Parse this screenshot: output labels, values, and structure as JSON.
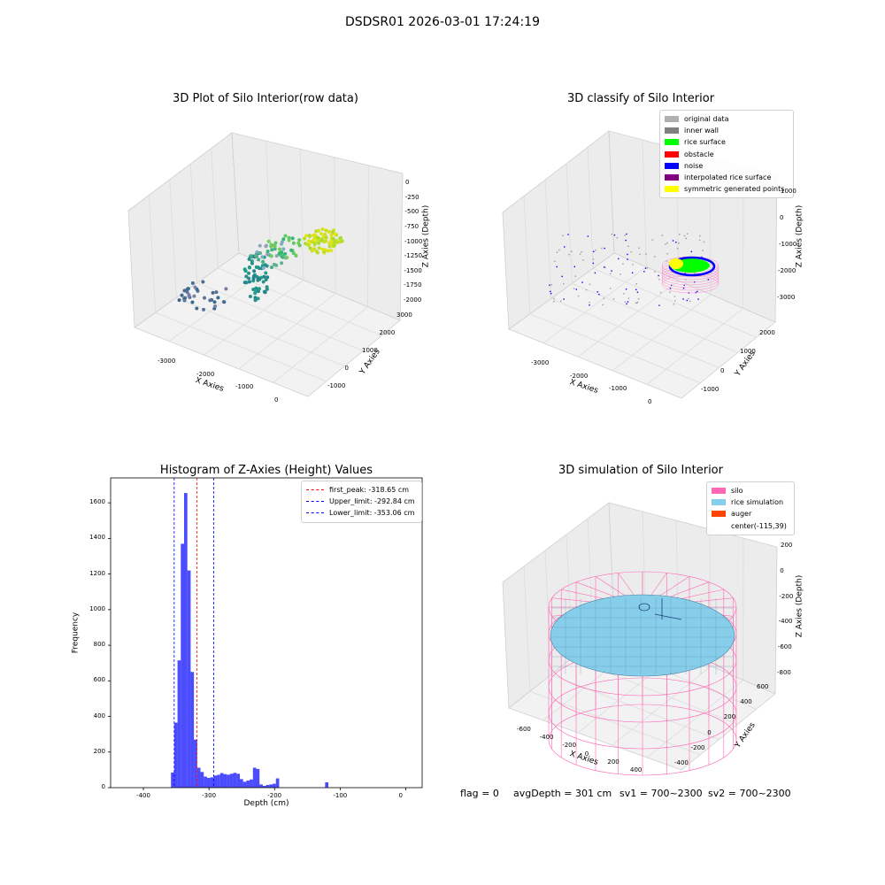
{
  "suptitle": "DSDSR01 2026-03-01 17:24:19",
  "panels": {
    "raw": {
      "title": "3D Plot of Silo Interior(row data)",
      "xlabel": "X Axies",
      "ylabel": "Y Axies",
      "zlabel": "Z Axies (Depth)",
      "xticks": [
        "-3000",
        "-2000",
        "-1000",
        "0"
      ],
      "yticks": [
        "-1000",
        "0",
        "1000",
        "2000",
        "3000"
      ],
      "zticks": [
        "0",
        "-250",
        "-500",
        "-750",
        "-1000",
        "-1250",
        "-1500",
        "-1750",
        "-2000"
      ]
    },
    "classify": {
      "title": "3D classify of Silo Interior",
      "xlabel": "X Axies",
      "ylabel": "Y Axies",
      "zlabel": "Z Axies (Depth)",
      "xticks": [
        "-3000",
        "-2000",
        "-1000",
        "0"
      ],
      "yticks": [
        "-1000",
        "0",
        "1000",
        "2000"
      ],
      "zticks": [
        "1000",
        "0",
        "-1000",
        "-2000",
        "-3000"
      ],
      "legend": [
        {
          "label": "original data",
          "color": "#b0b0b0"
        },
        {
          "label": "inner wall",
          "color": "#808080"
        },
        {
          "label": "rice surface",
          "color": "#00ff00"
        },
        {
          "label": "obstacle",
          "color": "#ff0000"
        },
        {
          "label": "noise",
          "color": "#0000ff"
        },
        {
          "label": "interpolated rice surface",
          "color": "#800080"
        },
        {
          "label": "symmetric generated points",
          "color": "#ffff00"
        }
      ]
    },
    "simulation": {
      "title": "3D simulation of Silo Interior",
      "xlabel": "X Axies",
      "ylabel": "Y Axies",
      "zlabel": "Z Axies (Depth)",
      "xticks": [
        "-600",
        "-400",
        "-200",
        "0",
        "200",
        "400"
      ],
      "yticks": [
        "-400",
        "-200",
        "0",
        "200",
        "400",
        "600"
      ],
      "zticks": [
        "200",
        "0",
        "-200",
        "-400",
        "-600",
        "-800"
      ],
      "legend": [
        {
          "label": "silo",
          "color": "#ff69b4"
        },
        {
          "label": "rice simulation",
          "color": "#87ceeb"
        },
        {
          "label": "auger",
          "color": "#ff4500"
        },
        {
          "label": "center(-115,39)",
          "color": ""
        }
      ]
    }
  },
  "bottom_text": {
    "flag": "flag = 0",
    "avg": "avgDepth = 301 cm",
    "sv1": "sv1 = 700~2300",
    "sv2": "sv2 = 700~2300"
  },
  "chart_data": {
    "type": "bar",
    "title": "Histogram of Z-Axies (Height) Values",
    "xlabel": "Depth (cm)",
    "ylabel": "Frequency",
    "xlim": [
      -450,
      25
    ],
    "ylim": [
      0,
      1740
    ],
    "xticks": [
      -400,
      -300,
      -200,
      -100,
      0
    ],
    "yticks": [
      0,
      200,
      400,
      600,
      800,
      1000,
      1200,
      1400,
      1600
    ],
    "bar_color": "#0000ff",
    "bins": [
      {
        "x0": -358,
        "x1": -353,
        "count": 85
      },
      {
        "x0": -353,
        "x1": -348,
        "count": 365
      },
      {
        "x0": -348,
        "x1": -343,
        "count": 715
      },
      {
        "x0": -343,
        "x1": -338,
        "count": 1370
      },
      {
        "x0": -338,
        "x1": -333,
        "count": 1655
      },
      {
        "x0": -333,
        "x1": -328,
        "count": 1220
      },
      {
        "x0": -328,
        "x1": -323,
        "count": 650
      },
      {
        "x0": -323,
        "x1": -318,
        "count": 270
      },
      {
        "x0": -318,
        "x1": -313,
        "count": 112
      },
      {
        "x0": -313,
        "x1": -308,
        "count": 88
      },
      {
        "x0": -308,
        "x1": -303,
        "count": 62
      },
      {
        "x0": -303,
        "x1": -298,
        "count": 55
      },
      {
        "x0": -298,
        "x1": -293,
        "count": 58
      },
      {
        "x0": -293,
        "x1": -288,
        "count": 68
      },
      {
        "x0": -288,
        "x1": -283,
        "count": 72
      },
      {
        "x0": -283,
        "x1": -278,
        "count": 82
      },
      {
        "x0": -278,
        "x1": -273,
        "count": 76
      },
      {
        "x0": -273,
        "x1": -268,
        "count": 73
      },
      {
        "x0": -268,
        "x1": -263,
        "count": 78
      },
      {
        "x0": -263,
        "x1": -258,
        "count": 83
      },
      {
        "x0": -258,
        "x1": -253,
        "count": 78
      },
      {
        "x0": -253,
        "x1": -248,
        "count": 48
      },
      {
        "x0": -248,
        "x1": -243,
        "count": 33
      },
      {
        "x0": -243,
        "x1": -238,
        "count": 40
      },
      {
        "x0": -238,
        "x1": -233,
        "count": 46
      },
      {
        "x0": -233,
        "x1": -228,
        "count": 112
      },
      {
        "x0": -228,
        "x1": -223,
        "count": 105
      },
      {
        "x0": -223,
        "x1": -218,
        "count": 18
      },
      {
        "x0": -218,
        "x1": -213,
        "count": 10
      },
      {
        "x0": -213,
        "x1": -208,
        "count": 15
      },
      {
        "x0": -208,
        "x1": -203,
        "count": 18
      },
      {
        "x0": -203,
        "x1": -198,
        "count": 22
      },
      {
        "x0": -198,
        "x1": -193,
        "count": 52
      },
      {
        "x0": -123,
        "x1": -118,
        "count": 30
      }
    ],
    "bin_note": "",
    "vlines": [
      {
        "label": "first_peak: -318.65 cm",
        "x": -318.65,
        "color": "#ff0000"
      },
      {
        "label": "Upper_limit: -292.84 cm",
        "x": -292.84,
        "color": "#0000ff"
      },
      {
        "label": "Lower_limit: -353.06 cm",
        "x": -353.06,
        "color": "#0000ff"
      }
    ]
  }
}
